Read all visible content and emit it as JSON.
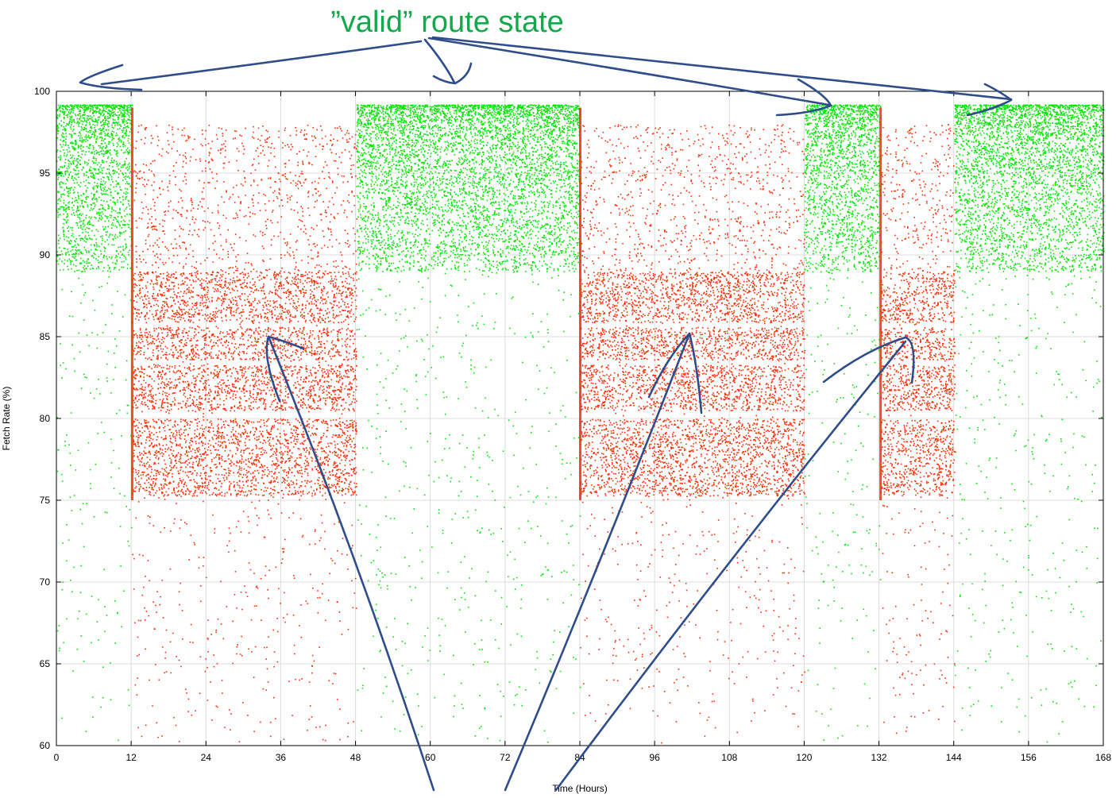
{
  "annotation": {
    "text": "”valid” route state",
    "color": "#13a84a",
    "arrow_color": "#2f4d8a"
  },
  "chart_data": {
    "type": "scatter",
    "xlabel": "Time (Hours)",
    "ylabel": "Fetch Rate (%)",
    "xlim": [
      0,
      168
    ],
    "ylim": [
      60,
      100
    ],
    "x_ticks": [
      0,
      12,
      24,
      36,
      48,
      60,
      72,
      84,
      96,
      108,
      120,
      132,
      144,
      156,
      168
    ],
    "y_ticks": [
      60,
      65,
      70,
      75,
      80,
      85,
      90,
      95,
      100
    ],
    "grid": true,
    "colors": {
      "valid": "#00e600",
      "invalid": "#ff2a00"
    },
    "series": [
      {
        "state": "valid",
        "segments": [
          [
            0,
            12.1
          ],
          [
            48.1,
            84
          ],
          [
            120,
            132.2
          ],
          [
            144.1,
            168
          ]
        ],
        "dense_range": [
          89,
          99.2
        ],
        "sparse_range": [
          60,
          89
        ]
      },
      {
        "state": "invalid",
        "segments": [
          [
            12.1,
            48.1
          ],
          [
            84,
            120
          ],
          [
            132.2,
            144.1
          ]
        ],
        "dense_range": [
          75,
          89
        ],
        "sparse_range": [
          60,
          98
        ]
      }
    ]
  }
}
